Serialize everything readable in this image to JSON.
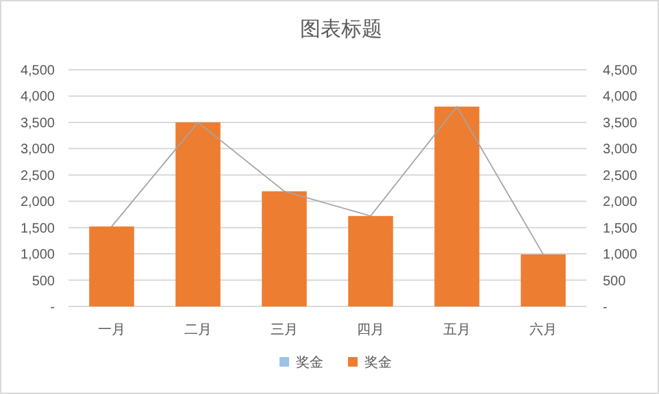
{
  "chart_data": {
    "type": "bar",
    "title": "图表标题",
    "categories": [
      "一月",
      "二月",
      "三月",
      "四月",
      "五月",
      "六月"
    ],
    "series": [
      {
        "name": "奖金",
        "color": "#9dc3e6",
        "values": [
          null,
          null,
          null,
          null,
          null,
          null
        ]
      },
      {
        "name": "奖金",
        "color": "#ed7d31",
        "values": [
          1520,
          3500,
          2190,
          1720,
          3800,
          990
        ]
      },
      {
        "type": "line",
        "color": "#a5a5a5",
        "values": [
          1520,
          3500,
          2190,
          1720,
          3800,
          990
        ]
      }
    ],
    "ylim": [
      0,
      4500
    ],
    "yticks": [
      {
        "value": 0,
        "label": "-"
      },
      {
        "value": 500,
        "label": "500"
      },
      {
        "value": 1000,
        "label": "1,000"
      },
      {
        "value": 1500,
        "label": "1,500"
      },
      {
        "value": 2000,
        "label": "2,000"
      },
      {
        "value": 2500,
        "label": "2,500"
      },
      {
        "value": 3000,
        "label": "3,000"
      },
      {
        "value": 3500,
        "label": "3,500"
      },
      {
        "value": 4000,
        "label": "4,000"
      },
      {
        "value": 4500,
        "label": "4,500"
      }
    ],
    "y2lim": [
      0,
      4500
    ],
    "y2ticks": [
      {
        "value": 0,
        "label": "-"
      },
      {
        "value": 500,
        "label": "500"
      },
      {
        "value": 1000,
        "label": "1,000"
      },
      {
        "value": 1500,
        "label": "1,500"
      },
      {
        "value": 2000,
        "label": "2,000"
      },
      {
        "value": 2500,
        "label": "2,500"
      },
      {
        "value": 3000,
        "label": "3,000"
      },
      {
        "value": 3500,
        "label": "3,500"
      },
      {
        "value": 4000,
        "label": "4,000"
      },
      {
        "value": 4500,
        "label": "4,500"
      }
    ],
    "grid": "y",
    "legend": "bottom"
  }
}
